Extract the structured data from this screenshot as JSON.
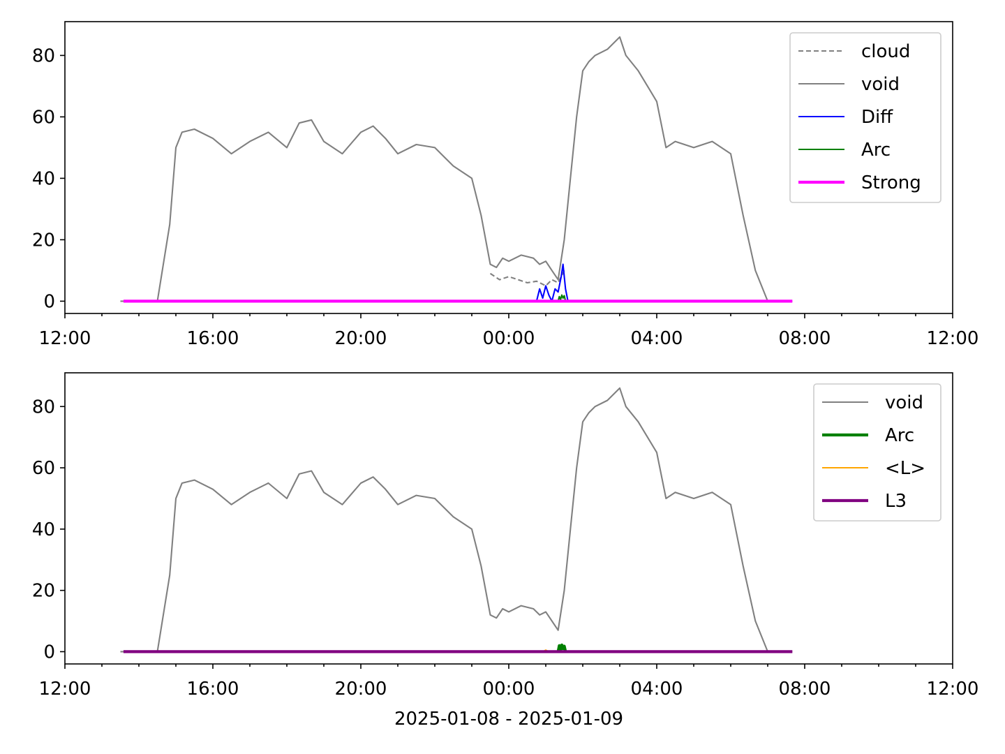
{
  "chart_data": [
    {
      "type": "line",
      "panel": "top",
      "x_ticks": [
        "12:00",
        "16:00",
        "20:00",
        "00:00",
        "04:00",
        "08:00",
        "12:00"
      ],
      "y_ticks": [
        0,
        20,
        40,
        60,
        80
      ],
      "ylim": [
        -4,
        91
      ],
      "xlim": [
        "2025-01-08 12:00",
        "2025-01-09 12:00"
      ],
      "grid": false,
      "legend_position": "upper-right",
      "series": [
        {
          "name": "cloud",
          "color": "#808080",
          "style": "dashed",
          "width": 1.5,
          "x": [
            "23:30",
            "23:45",
            "00:00",
            "00:15",
            "00:30",
            "00:45",
            "01:00",
            "01:10",
            "01:20",
            "01:30"
          ],
          "y": [
            9,
            7,
            8,
            7,
            6,
            6.5,
            5,
            7,
            6,
            10
          ]
        },
        {
          "name": "void",
          "color": "#808080",
          "style": "solid",
          "width": 1.5,
          "x": [
            "13:30",
            "14:30",
            "14:50",
            "15:00",
            "15:10",
            "15:30",
            "16:00",
            "16:30",
            "17:00",
            "17:30",
            "18:00",
            "18:20",
            "18:40",
            "19:00",
            "19:30",
            "20:00",
            "20:20",
            "20:40",
            "21:00",
            "21:30",
            "22:00",
            "22:30",
            "23:00",
            "23:15",
            "23:30",
            "23:40",
            "23:50",
            "00:00",
            "00:20",
            "00:40",
            "00:50",
            "01:00",
            "01:10",
            "01:20",
            "01:30",
            "01:40",
            "01:50",
            "02:00",
            "02:10",
            "02:20",
            "02:40",
            "03:00",
            "03:10",
            "03:30",
            "03:45",
            "04:00",
            "04:15",
            "04:30",
            "05:00",
            "05:30",
            "06:00",
            "06:20",
            "06:40",
            "07:00",
            "07:40"
          ],
          "y": [
            0,
            0,
            25,
            50,
            55,
            56,
            53,
            48,
            52,
            55,
            50,
            58,
            59,
            52,
            48,
            55,
            57,
            53,
            48,
            51,
            50,
            44,
            40,
            28,
            12,
            11,
            14,
            13,
            15,
            14,
            12,
            13,
            10,
            7,
            20,
            40,
            60,
            75,
            78,
            80,
            82,
            86,
            80,
            75,
            70,
            65,
            50,
            52,
            50,
            52,
            48,
            28,
            10,
            0,
            0
          ]
        },
        {
          "name": "Diff",
          "color": "#0000ff",
          "style": "solid",
          "width": 1.5,
          "x": [
            "00:45",
            "00:50",
            "00:55",
            "01:00",
            "01:05",
            "01:10",
            "01:15",
            "01:20",
            "01:25",
            "01:28",
            "01:32",
            "01:36"
          ],
          "y": [
            0,
            4,
            1,
            5,
            2,
            0,
            4,
            3,
            8,
            12,
            4,
            0
          ]
        },
        {
          "name": "Arc",
          "color": "#008000",
          "style": "solid",
          "width": 1.5,
          "x": [
            "01:20",
            "01:22",
            "01:24",
            "01:26",
            "01:28",
            "01:30",
            "01:32"
          ],
          "y": [
            0,
            1.5,
            0.5,
            2,
            1,
            1.8,
            0
          ]
        },
        {
          "name": "Strong",
          "color": "#ff00ff",
          "style": "solid",
          "width": 3,
          "x": [
            "13:35",
            "07:40"
          ],
          "y": [
            0,
            0
          ]
        }
      ]
    },
    {
      "type": "line",
      "panel": "bottom",
      "x_ticks": [
        "12:00",
        "16:00",
        "20:00",
        "00:00",
        "04:00",
        "08:00",
        "12:00"
      ],
      "y_ticks": [
        0,
        20,
        40,
        60,
        80
      ],
      "ylim": [
        -4,
        91
      ],
      "xlim": [
        "2025-01-08 12:00",
        "2025-01-09 12:00"
      ],
      "xlabel": "2025-01-08 - 2025-01-09",
      "grid": false,
      "legend_position": "upper-right",
      "series": [
        {
          "name": "void",
          "color": "#808080",
          "style": "solid",
          "width": 1.5,
          "x": [
            "13:30",
            "14:30",
            "14:50",
            "15:00",
            "15:10",
            "15:30",
            "16:00",
            "16:30",
            "17:00",
            "17:30",
            "18:00",
            "18:20",
            "18:40",
            "19:00",
            "19:30",
            "20:00",
            "20:20",
            "20:40",
            "21:00",
            "21:30",
            "22:00",
            "22:30",
            "23:00",
            "23:15",
            "23:30",
            "23:40",
            "23:50",
            "00:00",
            "00:20",
            "00:40",
            "00:50",
            "01:00",
            "01:10",
            "01:20",
            "01:30",
            "01:40",
            "01:50",
            "02:00",
            "02:10",
            "02:20",
            "02:40",
            "03:00",
            "03:10",
            "03:30",
            "03:45",
            "04:00",
            "04:15",
            "04:30",
            "05:00",
            "05:30",
            "06:00",
            "06:20",
            "06:40",
            "07:00",
            "07:40"
          ],
          "y": [
            0,
            0,
            25,
            50,
            55,
            56,
            53,
            48,
            52,
            55,
            50,
            58,
            59,
            52,
            48,
            55,
            57,
            53,
            48,
            51,
            50,
            44,
            40,
            28,
            12,
            11,
            14,
            13,
            15,
            14,
            12,
            13,
            10,
            7,
            20,
            40,
            60,
            75,
            78,
            80,
            82,
            86,
            80,
            75,
            70,
            65,
            50,
            52,
            50,
            52,
            48,
            28,
            10,
            0,
            0
          ]
        },
        {
          "name": "Arc",
          "color": "#008000",
          "style": "solid",
          "width": 3,
          "x": [
            "01:20",
            "01:22",
            "01:24",
            "01:26",
            "01:28",
            "01:30",
            "01:32"
          ],
          "y": [
            0,
            2,
            0.5,
            2.2,
            1,
            1.8,
            0
          ]
        },
        {
          "name": "<L>",
          "color": "#ffa500",
          "style": "solid",
          "width": 1.5,
          "x": [
            "00:55",
            "01:00",
            "01:05"
          ],
          "y": [
            0,
            0.5,
            0
          ]
        },
        {
          "name": "L3",
          "color": "#800080",
          "style": "solid",
          "width": 3,
          "x": [
            "13:35",
            "07:40"
          ],
          "y": [
            0,
            0
          ]
        }
      ]
    }
  ]
}
